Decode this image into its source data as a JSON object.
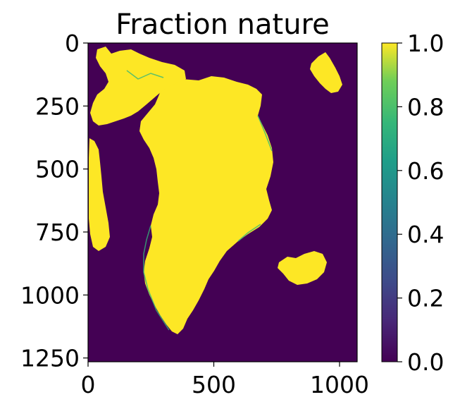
{
  "chart_data": {
    "type": "heatmap",
    "title": "Fraction nature",
    "xlabel": "",
    "ylabel": "",
    "x_ticks": [
      0,
      500,
      1000
    ],
    "y_ticks": [
      0,
      250,
      500,
      750,
      1000,
      1250
    ],
    "xlim": [
      0,
      1070
    ],
    "ylim": [
      1265,
      0
    ],
    "y_axis_inverted": true,
    "colormap": "viridis",
    "colorbar": {
      "range": [
        0.0,
        1.0
      ],
      "tick_values": [
        0.0,
        0.2,
        0.4,
        0.6,
        0.8,
        1.0
      ],
      "tick_labels": [
        "0.0",
        "0.2",
        "0.4",
        "0.6",
        "0.8",
        "1.0"
      ]
    },
    "background_value": 0.0,
    "land_value": 1.0,
    "grid": false,
    "description_values": "Binary-like raster: ocean cells = 0.0 (dark purple), land cells = 1.0 (yellow), coastal fringe cells intermediate values."
  },
  "colors": {
    "low": "#440154",
    "high": "#fde725"
  }
}
